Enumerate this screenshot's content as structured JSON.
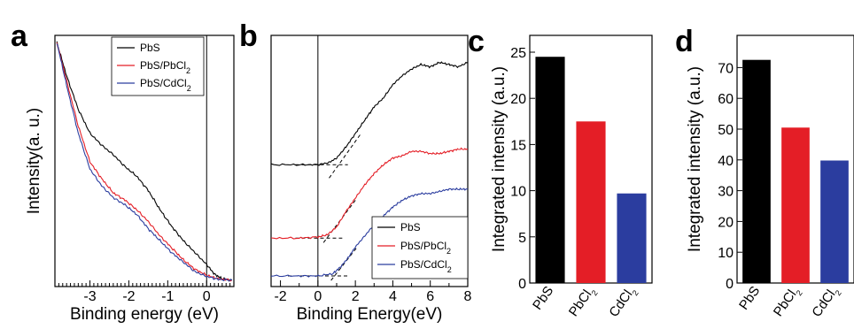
{
  "colors": {
    "PbS": "#000000",
    "PbS/PbCl2": "#e41e26",
    "PbS/CdCl2": "#2b3d9f"
  },
  "chart_data": [
    {
      "panel": "a",
      "type": "line",
      "xlabel": "Binding energy (eV)",
      "ylabel": "Intensity(a. u.)",
      "xlim": [
        -3.9,
        0.7
      ],
      "xticks": [
        "-3",
        "-2",
        "-1",
        "0"
      ],
      "x_reverse_note": false,
      "vline": 0,
      "legend": {
        "position": "top-right",
        "entries": [
          {
            "label": "PbS",
            "color": "#000000"
          },
          {
            "label": "PbS/PbCl",
            "sub": "2",
            "color": "#e41e26"
          },
          {
            "label": "PbS/CdCl",
            "sub": "2",
            "color": "#2b3d9f"
          }
        ]
      },
      "series": [
        {
          "name": "PbS",
          "color": "#000000",
          "points": [
            [
              -3.85,
              1.0
            ],
            [
              -3.6,
              0.86
            ],
            [
              -3.3,
              0.72
            ],
            [
              -3.0,
              0.62
            ],
            [
              -2.7,
              0.57
            ],
            [
              -2.4,
              0.53
            ],
            [
              -2.1,
              0.48
            ],
            [
              -1.8,
              0.44
            ],
            [
              -1.5,
              0.38
            ],
            [
              -1.2,
              0.3
            ],
            [
              -0.9,
              0.23
            ],
            [
              -0.6,
              0.17
            ],
            [
              -0.3,
              0.12
            ],
            [
              0.0,
              0.07
            ],
            [
              0.2,
              0.03
            ],
            [
              0.4,
              0.01
            ],
            [
              0.65,
              0.005
            ]
          ]
        },
        {
          "name": "PbS/PbCl2",
          "color": "#e41e26",
          "points": [
            [
              -3.85,
              1.0
            ],
            [
              -3.6,
              0.84
            ],
            [
              -3.3,
              0.65
            ],
            [
              -3.0,
              0.5
            ],
            [
              -2.7,
              0.43
            ],
            [
              -2.4,
              0.37
            ],
            [
              -2.1,
              0.34
            ],
            [
              -1.8,
              0.3
            ],
            [
              -1.5,
              0.25
            ],
            [
              -1.2,
              0.19
            ],
            [
              -0.9,
              0.14
            ],
            [
              -0.6,
              0.09
            ],
            [
              -0.3,
              0.05
            ],
            [
              0.0,
              0.025
            ],
            [
              0.3,
              0.01
            ],
            [
              0.65,
              0.005
            ]
          ]
        },
        {
          "name": "PbS/CdCl2",
          "color": "#2b3d9f",
          "points": [
            [
              -3.85,
              1.0
            ],
            [
              -3.6,
              0.82
            ],
            [
              -3.3,
              0.62
            ],
            [
              -3.0,
              0.47
            ],
            [
              -2.7,
              0.4
            ],
            [
              -2.4,
              0.35
            ],
            [
              -2.1,
              0.32
            ],
            [
              -1.8,
              0.28
            ],
            [
              -1.5,
              0.22
            ],
            [
              -1.2,
              0.17
            ],
            [
              -0.9,
              0.12
            ],
            [
              -0.6,
              0.08
            ],
            [
              -0.3,
              0.04
            ],
            [
              0.0,
              0.02
            ],
            [
              0.3,
              0.008
            ],
            [
              0.65,
              0.004
            ]
          ]
        }
      ]
    },
    {
      "panel": "b",
      "type": "line",
      "xlabel": "Binding Energy(eV)",
      "xlim": [
        -2.5,
        8
      ],
      "xticks": [
        "-2",
        "0",
        "2",
        "4",
        "6",
        "8"
      ],
      "vline": 0,
      "legend": {
        "position": "bottom-right",
        "entries": [
          {
            "label": "PbS",
            "color": "#000000"
          },
          {
            "label": "PbS/PbCl",
            "sub": "2",
            "color": "#e41e26"
          },
          {
            "label": "PbS/CdCl",
            "sub": "2",
            "color": "#2b3d9f"
          }
        ]
      },
      "series": [
        {
          "name": "PbS",
          "color": "#000000",
          "offset": 0.5,
          "points": [
            [
              -2.5,
              0.0
            ],
            [
              -1,
              0.0
            ],
            [
              0,
              0.0
            ],
            [
              0.6,
              0.01
            ],
            [
              1.0,
              0.03
            ],
            [
              1.5,
              0.08
            ],
            [
              2.0,
              0.14
            ],
            [
              2.5,
              0.2
            ],
            [
              3.0,
              0.26
            ],
            [
              3.5,
              0.3
            ],
            [
              4.0,
              0.36
            ],
            [
              4.5,
              0.4
            ],
            [
              5.0,
              0.43
            ],
            [
              5.5,
              0.45
            ],
            [
              6.0,
              0.44
            ],
            [
              6.5,
              0.46
            ],
            [
              7.0,
              0.45
            ],
            [
              7.5,
              0.44
            ],
            [
              8.0,
              0.46
            ]
          ]
        },
        {
          "name": "PbS/PbCl2",
          "color": "#e41e26",
          "offset": 0.17,
          "points": [
            [
              -2.5,
              0.0
            ],
            [
              -1,
              0.0
            ],
            [
              0,
              0.005
            ],
            [
              0.5,
              0.015
            ],
            [
              1.0,
              0.05
            ],
            [
              1.5,
              0.12
            ],
            [
              2.0,
              0.18
            ],
            [
              2.5,
              0.24
            ],
            [
              3.0,
              0.29
            ],
            [
              3.5,
              0.33
            ],
            [
              4.0,
              0.36
            ],
            [
              4.5,
              0.37
            ],
            [
              5.0,
              0.39
            ],
            [
              5.5,
              0.39
            ],
            [
              6.0,
              0.38
            ],
            [
              6.5,
              0.38
            ],
            [
              7.0,
              0.39
            ],
            [
              7.5,
              0.4
            ],
            [
              8.0,
              0.4
            ]
          ]
        },
        {
          "name": "PbS/CdCl2",
          "color": "#2b3d9f",
          "offset": 0.0,
          "points": [
            [
              -2.5,
              0.0
            ],
            [
              -1,
              0.0
            ],
            [
              0,
              0.0
            ],
            [
              0.8,
              0.01
            ],
            [
              1.2,
              0.04
            ],
            [
              1.6,
              0.08
            ],
            [
              2.0,
              0.13
            ],
            [
              2.5,
              0.18
            ],
            [
              3.0,
              0.23
            ],
            [
              3.5,
              0.27
            ],
            [
              4.0,
              0.31
            ],
            [
              4.5,
              0.34
            ],
            [
              5.0,
              0.36
            ],
            [
              5.5,
              0.37
            ],
            [
              6.0,
              0.37
            ],
            [
              6.5,
              0.38
            ],
            [
              7.0,
              0.39
            ],
            [
              7.5,
              0.39
            ],
            [
              8.0,
              0.39
            ]
          ]
        }
      ],
      "extrapolations": [
        {
          "series": "PbS",
          "baseline": [
            [
              -1.2,
              0.5
            ],
            [
              1.6,
              0.5
            ]
          ],
          "tangent": [
            [
              0.6,
              0.44
            ],
            [
              2.3,
              0.64
            ]
          ]
        },
        {
          "series": "PbS/PbCl2",
          "baseline": [
            [
              -1.2,
              0.17
            ],
            [
              1.3,
              0.17
            ]
          ],
          "tangent": [
            [
              0.3,
              0.15
            ],
            [
              2.0,
              0.34
            ]
          ]
        },
        {
          "series": "PbS/CdCl2",
          "baseline": [
            [
              -1.6,
              0.0
            ],
            [
              1.6,
              0.0
            ]
          ],
          "tangent": [
            [
              0.7,
              -0.02
            ],
            [
              2.1,
              0.13
            ]
          ]
        }
      ]
    },
    {
      "panel": "c",
      "type": "bar",
      "ylabel": "Integrated intensity (a.u.)",
      "ylim": [
        0,
        25
      ],
      "yticks": [
        0,
        5,
        10,
        15,
        20,
        25
      ],
      "categories": [
        "PbS",
        "PbCl",
        "CdCl"
      ],
      "category_subs": [
        "",
        "2",
        "2"
      ],
      "values": [
        24.5,
        17.5,
        9.7
      ],
      "bar_colors": [
        "#000000",
        "#e41e26",
        "#2b3d9f"
      ]
    },
    {
      "panel": "d",
      "type": "bar",
      "ylabel": "Integrated intensity (a.u.)",
      "ylim": [
        0,
        75
      ],
      "yticks": [
        0,
        10,
        20,
        30,
        40,
        50,
        60,
        70
      ],
      "categories": [
        "PbS",
        "PbCl",
        "CdCl"
      ],
      "category_subs": [
        "",
        "2",
        "2"
      ],
      "values": [
        72.5,
        50.5,
        39.8
      ],
      "bar_colors": [
        "#000000",
        "#e41e26",
        "#2b3d9f"
      ]
    }
  ]
}
